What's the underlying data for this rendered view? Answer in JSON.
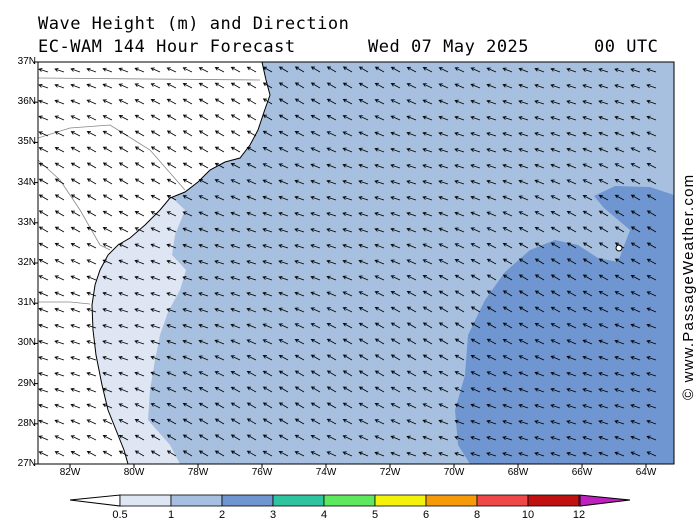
{
  "title_line1": "Wave Height (m) and Direction",
  "title_model": "EC-WAM 144 Hour Forecast",
  "title_date": "Wed 07 May 2025",
  "title_time": "00 UTC",
  "credit": "© www.PassageWeather.com",
  "map": {
    "lat_labels": [
      "37N",
      "36N",
      "35N",
      "34N",
      "33N",
      "32N",
      "31N",
      "30N",
      "29N",
      "28N",
      "27N"
    ],
    "lon_labels": [
      "82W",
      "80W",
      "78W",
      "76W",
      "74W",
      "72W",
      "70W",
      "68W",
      "66W",
      "64W"
    ],
    "lat_range": [
      27,
      37
    ],
    "lon_range": [
      -83,
      -63
    ],
    "land_color": "#ffffff",
    "wave_colors": {
      "lt_0_5": "#ffffff",
      "0_5_to_1": "#dfe6f3",
      "1_to_2": "#a8c0e0",
      "2_to_3": "#6f96d0"
    },
    "arrow_direction": "waves propagating toward west-northwest"
  },
  "colorbar": {
    "labels": [
      "0.5",
      "1",
      "2",
      "3",
      "4",
      "5",
      "6",
      "8",
      "10",
      "12"
    ],
    "colors": [
      "#dfe6f3",
      "#a8c0e0",
      "#6f96d0",
      "#2ec4a0",
      "#5ee85e",
      "#f2f20a",
      "#f59b0a",
      "#f04848",
      "#c01010",
      "#c020c0"
    ]
  }
}
